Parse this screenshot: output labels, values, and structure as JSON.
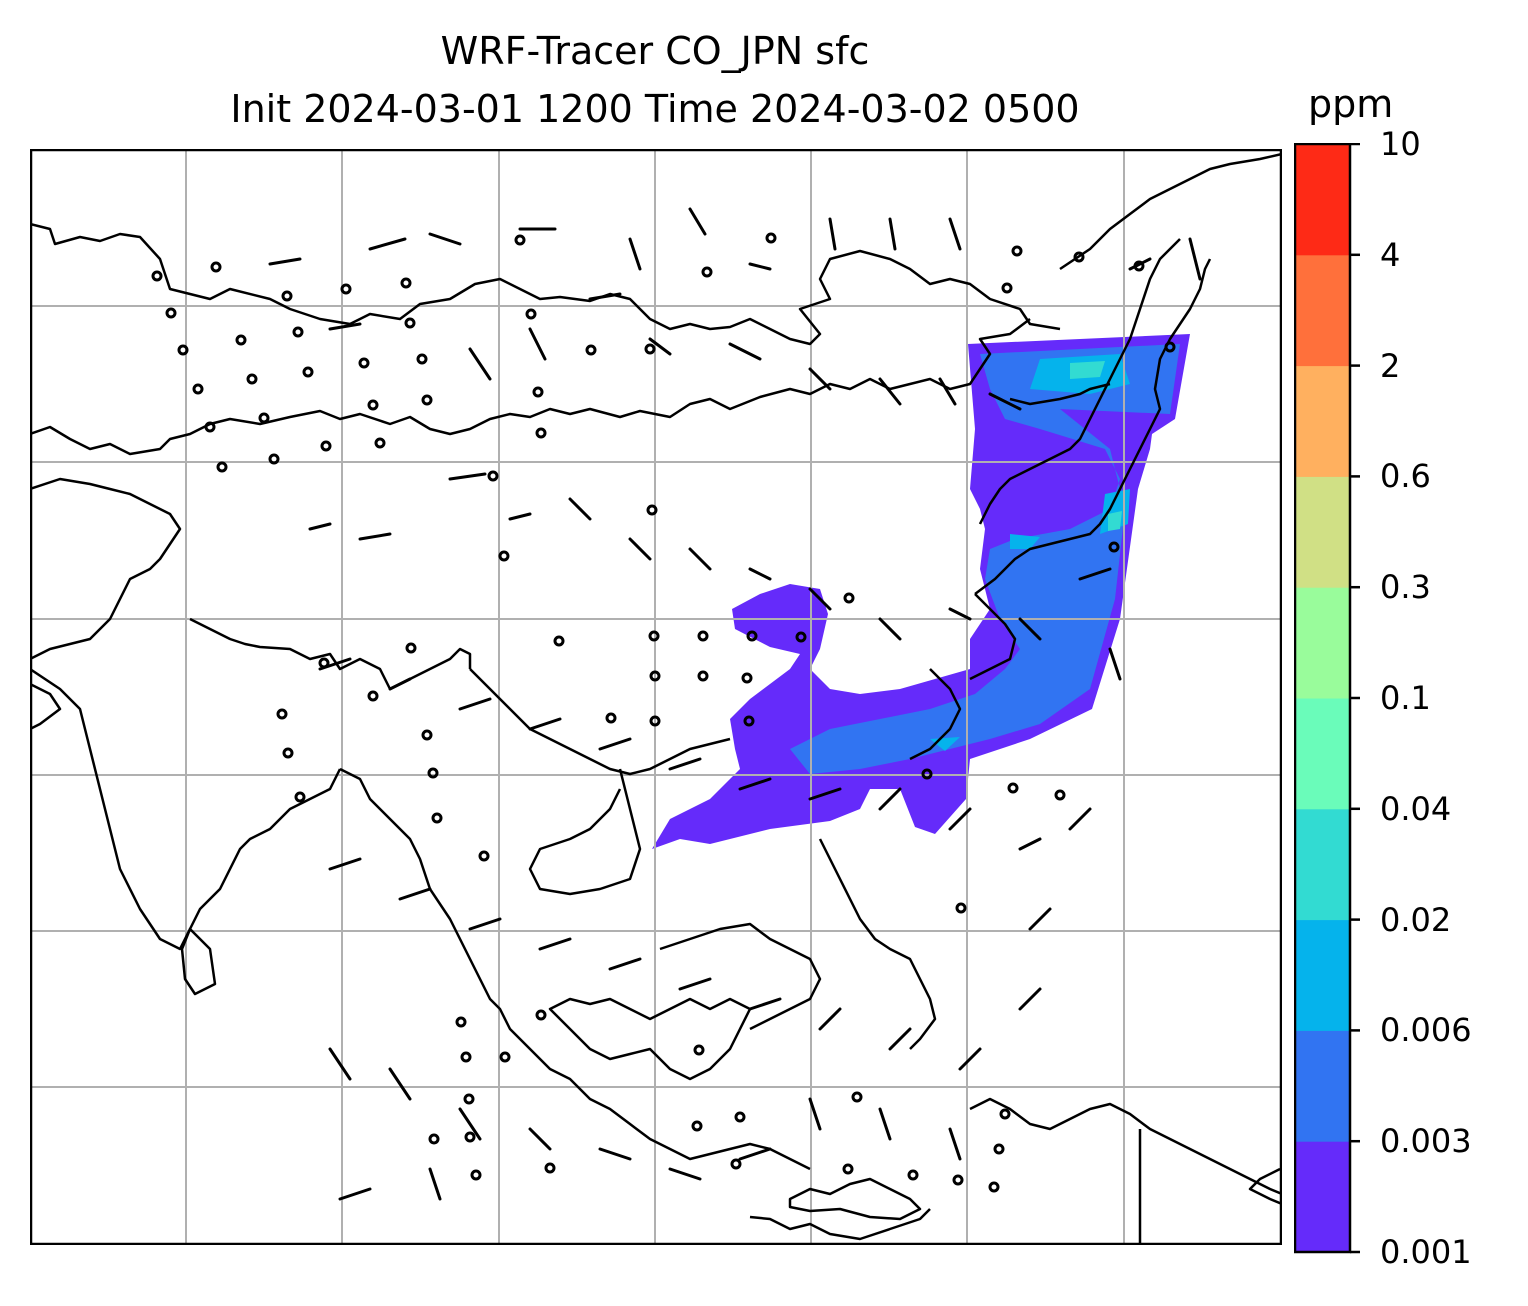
{
  "title": {
    "line1": "WRF-Tracer CO_JPN sfc",
    "line2": "Init 2024-03-01 1200 Time 2024-03-02 0500"
  },
  "colorbar": {
    "unit": "ppm",
    "levels": [
      "0.001",
      "0.003",
      "0.006",
      "0.02",
      "0.04",
      "0.1",
      "0.3",
      "0.6",
      "2",
      "4",
      "10"
    ],
    "colors": [
      "#652bfa",
      "#3174f2",
      "#05b3ec",
      "#32dbd2",
      "#6afcba",
      "#99fc9b",
      "#d0e085",
      "#ffb05f",
      "#ff703b",
      "#fe2a16"
    ]
  },
  "map": {
    "coastline_color": "#000000",
    "grid_color": "#b0b0b0",
    "background": "#ffffff"
  }
}
